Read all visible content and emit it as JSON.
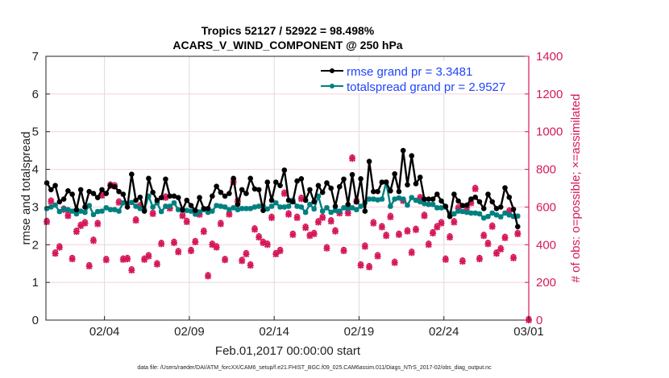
{
  "chart_data": {
    "type": "line",
    "title": [
      "Tropics 52127 / 52922 = 98.498%",
      "ACARS_V_WIND_COMPONENT @ 250 hPa"
    ],
    "xlabel": "Feb.01,2017 00:00:00 start",
    "ylabel": "rmse and totalspread",
    "ylabel_right": "# of obs: o=possible; ×=assimilated",
    "xlim": [
      -0.45,
      28
    ],
    "ylim": [
      0,
      7
    ],
    "ylim_right": [
      0,
      1400
    ],
    "x_ticks": [
      3,
      8,
      13,
      18,
      23,
      28
    ],
    "x_tick_labels": [
      "02/04",
      "02/09",
      "02/14",
      "02/19",
      "02/24",
      "03/01"
    ],
    "y_ticks": [
      "0",
      "1",
      "2",
      "3",
      "4",
      "5",
      "6",
      "7"
    ],
    "y_right_ticks": [
      "0",
      "200",
      "400",
      "600",
      "800",
      "1000",
      "1200",
      "1400"
    ],
    "grid": true,
    "legend_position": "top-right",
    "x_start_day": -0.4,
    "x_step_day": 0.25,
    "series": [
      {
        "name": "rmse grand pr = 3.3481",
        "color": "#000000",
        "axis": "left",
        "values": [
          3.64,
          3.46,
          3.57,
          3.14,
          3.21,
          3.43,
          3.34,
          2.93,
          3.46,
          3.0,
          3.41,
          3.36,
          3.25,
          3.46,
          3.36,
          3.57,
          3.54,
          3.41,
          3.34,
          3.0,
          3.87,
          3.18,
          3.26,
          2.89,
          3.76,
          3.39,
          3.18,
          3.25,
          3.74,
          3.29,
          3.29,
          3.25,
          2.93,
          3.18,
          3.04,
          2.91,
          3.25,
          2.96,
          2.96,
          3.29,
          3.55,
          3.39,
          3.29,
          3.36,
          3.76,
          3.07,
          3.46,
          3.36,
          3.76,
          3.48,
          3.46,
          2.91,
          3.66,
          3.18,
          3.66,
          3.57,
          3.98,
          3.18,
          3.14,
          3.69,
          3.75,
          3.18,
          3.46,
          3.14,
          3.57,
          3.39,
          3.64,
          3.5,
          3.02,
          3.54,
          3.74,
          3.07,
          3.86,
          3.14,
          3.75,
          2.89,
          4.21,
          3.41,
          3.41,
          3.66,
          3.66,
          3.43,
          3.88,
          3.41,
          4.5,
          3.59,
          4.36,
          3.62,
          3.79,
          3.21,
          3.21,
          3.21,
          3.34,
          3.16,
          3.02,
          2.75,
          3.34,
          3.16,
          3.04,
          3.05,
          3.21,
          3.26,
          3.14,
          2.96,
          3.34,
          3.14,
          2.96,
          3.0,
          3.51,
          3.26,
          2.94,
          2.48
        ]
      },
      {
        "name": "totalspread grand pr = 2.9527",
        "color": "#008080",
        "axis": "left",
        "values": [
          2.96,
          3.0,
          3.05,
          2.88,
          2.95,
          2.93,
          2.89,
          2.82,
          2.89,
          2.86,
          3.04,
          2.8,
          2.88,
          2.89,
          2.98,
          2.93,
          2.93,
          2.89,
          3.11,
          3.09,
          3.12,
          3.02,
          2.96,
          2.93,
          3.29,
          3.0,
          3.11,
          2.88,
          3.02,
          3.02,
          3.11,
          2.93,
          2.91,
          2.91,
          2.89,
          2.81,
          2.87,
          2.93,
          2.86,
          2.89,
          3.04,
          3.02,
          3.0,
          2.93,
          2.98,
          2.93,
          2.96,
          2.96,
          2.96,
          3.0,
          3.02,
          3.02,
          2.95,
          3.02,
          3.11,
          3.0,
          3.0,
          3.02,
          3.18,
          3.02,
          3.0,
          2.86,
          3.07,
          2.95,
          3.29,
          2.89,
          2.98,
          2.86,
          2.91,
          2.89,
          2.98,
          2.96,
          2.98,
          2.93,
          3.02,
          3.12,
          3.21,
          3.21,
          3.19,
          3.21,
          3.66,
          3.02,
          3.21,
          3.24,
          3.21,
          3.05,
          3.25,
          3.18,
          3.14,
          3.09,
          3.07,
          3.07,
          2.98,
          2.98,
          3.0,
          2.82,
          2.82,
          2.89,
          2.88,
          2.86,
          2.84,
          2.84,
          2.82,
          2.71,
          2.75,
          2.84,
          2.79,
          2.74,
          2.84,
          2.79,
          2.75,
          2.76
        ]
      },
      {
        "name": "obs possible / assimilated",
        "color": "#d6185a",
        "axis": "right",
        "values": [
          521,
          629,
          353,
          386,
          586,
          553,
          324,
          469,
          500,
          514,
          286,
          421,
          510,
          661,
          319,
          714,
          710,
          624,
          321,
          324,
          264,
          529,
          604,
          321,
          339,
          564,
          296,
          404,
          650,
          593,
          410,
          361,
          553,
          521,
          367,
          414,
          560,
          469,
          233,
          400,
          386,
          510,
          319,
          561,
          733,
          629,
          314,
          350,
          290,
          481,
          439,
          410,
          400,
          543,
          350,
          367,
          671,
          561,
          453,
          543,
          643,
          490,
          447,
          457,
          519,
          543,
          381,
          524,
          471,
          567,
          367,
          567,
          857,
          629,
          290,
          390,
          281,
          514,
          339,
          493,
          447,
          547,
          304,
          453,
          633,
          471,
          357,
          479,
          647,
          553,
          400,
          461,
          493,
          514,
          321,
          439,
          519,
          593,
          311,
          596,
          621,
          696,
          324,
          447,
          404,
          496,
          353,
          376,
          436,
          576,
          329,
          457
        ],
        "extra_point": {
          "x": 28,
          "value": 0
        }
      }
    ],
    "footnote": "data file: /Users/raeder/DAI/ATM_forcXX/CAM6_setup/f.e21.FHIST_BGC.f09_025.CAM6assim.011/Diags_NTrS_2017-02/obs_diag_output.nc"
  }
}
